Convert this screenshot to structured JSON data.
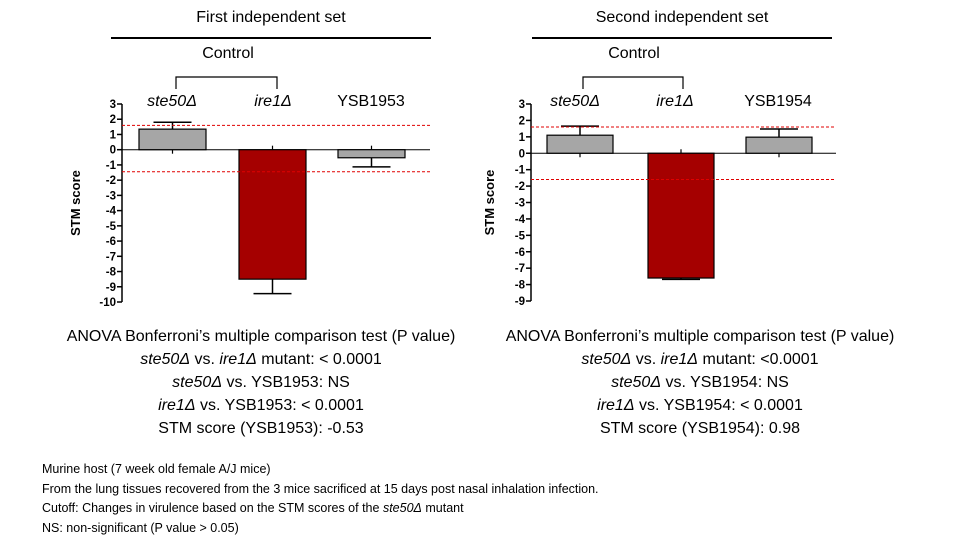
{
  "panels": [
    {
      "title": "First independent set",
      "control_label": "Control",
      "stats": {
        "heading": "ANOVA Bonferroni’s multiple comparison test (P value)",
        "line1_a": "ste50Δ",
        "line1_b": " vs. ",
        "line1_c": "ire1Δ",
        "line1_d": " mutant: < 0.0001",
        "line2_a": "ste50Δ",
        "line2_b": " vs. YSB1953: NS",
        "line3_a": "ire1Δ",
        "line3_b": " vs. YSB1953: < 0.0001",
        "line4": "STM score (YSB1953): -0.53"
      }
    },
    {
      "title": "Second independent set",
      "control_label": "Control",
      "stats": {
        "heading": "ANOVA Bonferroni’s multiple comparison test (P value)",
        "line1_a": "ste50Δ",
        "line1_b": " vs. ",
        "line1_c": "ire1Δ",
        "line1_d": " mutant: <0.0001",
        "line2_a": "ste50Δ",
        "line2_b": " vs. YSB1954: NS",
        "line3_a": "ire1Δ",
        "line3_b": " vs. YSB1954: < 0.0001",
        "line4": "STM score (YSB1954): 0.98"
      }
    }
  ],
  "chart_data": [
    {
      "type": "bar",
      "title": "First independent set",
      "ylabel": "STM score",
      "categories": [
        "ste50Δ",
        "ire1Δ",
        "YSB1953"
      ],
      "category_italic": [
        true,
        true,
        false
      ],
      "values": [
        1.35,
        -8.5,
        -0.53
      ],
      "errors": [
        0.45,
        0.95,
        0.6
      ],
      "colors": [
        "#a6a6a6",
        "#a50000",
        "#a6a6a6"
      ],
      "ylim": [
        -10,
        3
      ],
      "yticks": [
        3,
        2,
        1,
        0,
        -1,
        -2,
        -3,
        -4,
        -5,
        -6,
        -7,
        -8,
        -9,
        -10
      ],
      "cutoffs": [
        1.6,
        -1.45
      ],
      "cutoff_color": "#e00000",
      "grid": false
    },
    {
      "type": "bar",
      "title": "Second independent set",
      "ylabel": "STM score",
      "categories": [
        "ste50Δ",
        "ire1Δ",
        "YSB1954"
      ],
      "category_italic": [
        true,
        true,
        false
      ],
      "values": [
        1.1,
        -7.6,
        0.98
      ],
      "errors": [
        0.55,
        0.08,
        0.5
      ],
      "colors": [
        "#a6a6a6",
        "#a50000",
        "#a6a6a6"
      ],
      "ylim": [
        -9,
        3
      ],
      "yticks": [
        3,
        2,
        1,
        0,
        -1,
        -2,
        -3,
        -4,
        -5,
        -6,
        -7,
        -8,
        -9
      ],
      "cutoffs": [
        1.6,
        -1.6
      ],
      "cutoff_color": "#e00000",
      "grid": false
    }
  ],
  "notes": {
    "line1": "Murine host (7 week old female A/J mice)",
    "line2": "From  the lung tissues recovered from the 3 mice sacrificed at 15 days post nasal inhalation infection.",
    "line3_a": "Cutoff: Changes in virulence based on the STM scores of the ",
    "line3_b": "ste50Δ",
    "line3_c": " mutant",
    "line4": "NS: non-significant (P value > 0.05)"
  }
}
